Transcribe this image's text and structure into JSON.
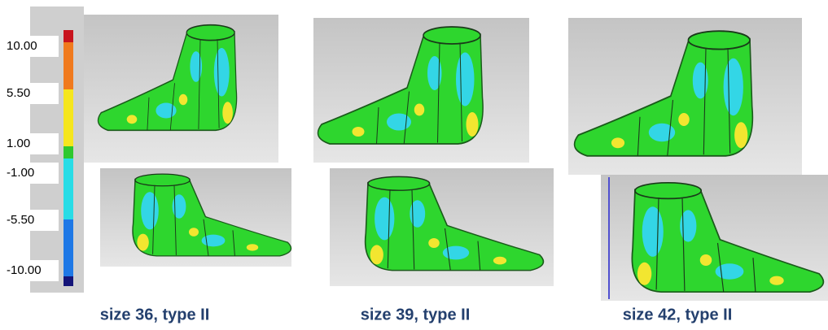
{
  "legend": {
    "labels": [
      "10.00",
      "5.50",
      "1.00",
      "-1.00",
      "-5.50",
      "-10.00"
    ]
  },
  "panels": [
    {
      "caption": "size 36, type II"
    },
    {
      "caption": "size 39, type II"
    },
    {
      "caption": "size 42, type II"
    }
  ]
}
